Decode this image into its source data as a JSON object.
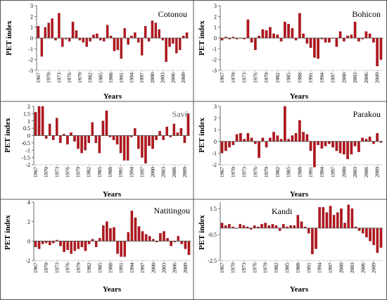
{
  "figure": {
    "bar_color": "#b3161e",
    "bar_edge_color": "#7a0c10",
    "frame_color": "#555555",
    "panel_title_color": "#000000",
    "panel_title_color_muted": "#666666"
  },
  "chart_data": [
    {
      "type": "bar",
      "title": "Cotonou",
      "xlabel": "Years",
      "ylabel": "PET index",
      "ylim": [
        -3,
        3
      ],
      "yticks": [
        "3",
        "2",
        "1",
        "0",
        "-1",
        "-2",
        "-3"
      ],
      "xticks": [
        "1967",
        "1970",
        "1973",
        "1976",
        "1979",
        "1982",
        "1985",
        "1988",
        "1991",
        "1994",
        "1997",
        "2000",
        "2003",
        "2006",
        "2009"
      ],
      "x_start": 1967,
      "values": [
        1.1,
        -1.7,
        1.0,
        1.4,
        1.8,
        -0.2,
        2.3,
        -0.8,
        -0.1,
        -0.3,
        1.5,
        0.7,
        -0.2,
        -0.4,
        -0.8,
        -0.3,
        0.3,
        0.4,
        -0.2,
        -0.3,
        1.2,
        0.2,
        -1.2,
        -1.1,
        -1.9,
        0.9,
        -0.6,
        0.2,
        0.5,
        -0.4,
        -1.6,
        1.1,
        -0.3,
        1.6,
        1.4,
        0.8,
        -0.2,
        -2.2,
        -0.8,
        -0.5,
        -1.4,
        -1.1,
        0.2,
        0.5
      ]
    },
    {
      "type": "bar",
      "title": "Bohicon",
      "xlabel": "Years",
      "ylabel": "PET index",
      "ylim": [
        -3,
        3
      ],
      "yticks": [
        "3",
        "2",
        "1",
        "0",
        "-1",
        "-2",
        "-3"
      ],
      "xticks": [
        "1967",
        "1970",
        "1973",
        "1976",
        "1979",
        "1982",
        "1985",
        "1988",
        "1991",
        "1994",
        "1997",
        "2000",
        "2003",
        "2006",
        "2009"
      ],
      "x_start": 1967,
      "values": [
        -0.2,
        0.1,
        -0.1,
        0.1,
        -0.1,
        0.0,
        -0.1,
        1.7,
        -0.4,
        -1.1,
        0.2,
        0.8,
        0.7,
        1.0,
        0.4,
        0.3,
        -0.3,
        1.5,
        1.3,
        0.9,
        -0.2,
        2.3,
        0.4,
        -0.5,
        -0.9,
        -1.8,
        -1.9,
        -0.1,
        -0.4,
        -0.4,
        0.0,
        -0.8,
        0.6,
        -0.3,
        0.2,
        0.3,
        1.5,
        -0.3,
        -0.1,
        0.6,
        0.4,
        -0.4,
        -2.6,
        -2.0
      ]
    },
    {
      "type": "bar",
      "title": "Savè",
      "xlabel": "Years",
      "ylabel": "PET index",
      "ylim": [
        -2,
        2
      ],
      "yticks": [
        "2",
        "1.5",
        "1",
        "0.5",
        "0",
        "-0.5",
        "-1",
        "-1.5",
        "-2"
      ],
      "xticks": [
        "1967",
        "1970",
        "1973",
        "1976",
        "1979",
        "1982",
        "1985",
        "1988",
        "1991",
        "1994",
        "1997",
        "2000",
        "2003",
        "2006",
        "2009"
      ],
      "x_start": 1967,
      "values": [
        1.6,
        2.0,
        2.0,
        -0.2,
        0.8,
        -0.3,
        1.2,
        -0.5,
        0.1,
        -0.6,
        0.2,
        -0.4,
        -0.9,
        -1.2,
        -1.0,
        -0.5,
        0.9,
        -0.5,
        -1.2,
        1.0,
        1.7,
        -0.1,
        -0.3,
        -0.6,
        -1.2,
        -1.7,
        -1.7,
        -0.1,
        0.5,
        -0.9,
        -1.5,
        -1.9,
        -0.7,
        -0.9,
        -0.3,
        0.3,
        -0.3,
        0.6,
        -0.1,
        0.8,
        0.2,
        0.5,
        -0.5,
        1.5
      ]
    },
    {
      "type": "bar",
      "title": "Parakou",
      "xlabel": "Years",
      "ylabel": "PET index",
      "ylim": [
        -2,
        3
      ],
      "yticks": [
        "3",
        "2",
        "1",
        "0",
        "-1",
        "-2"
      ],
      "xticks": [
        "1967",
        "1970",
        "1973",
        "1976",
        "1979",
        "1982",
        "1985",
        "1988",
        "1991",
        "1994",
        "1997",
        "2000",
        "2003",
        "2006",
        "2009"
      ],
      "x_start": 1967,
      "values": [
        -1.0,
        -0.8,
        -0.5,
        -0.3,
        0.6,
        0.7,
        0.2,
        0.7,
        0.3,
        -0.2,
        -1.4,
        0.3,
        -0.5,
        0.3,
        0.8,
        0.5,
        0.2,
        3.0,
        0.2,
        0.5,
        0.7,
        1.8,
        0.8,
        0.6,
        -0.8,
        -2.2,
        -0.3,
        -0.6,
        -0.4,
        -0.2,
        -0.5,
        -0.8,
        -1.0,
        -1.1,
        -1.5,
        -1.1,
        -0.4,
        -0.9,
        0.3,
        0.2,
        0.4,
        -0.2,
        0.7,
        -0.1
      ]
    },
    {
      "type": "bar",
      "title": "Natitingou",
      "xlabel": "Years",
      "ylabel": "PET index",
      "ylim": [
        -2,
        4
      ],
      "yticks": [
        "4",
        "2",
        "0",
        "-2"
      ],
      "xticks": [
        "1967",
        "1970",
        "1973",
        "1976",
        "1979",
        "1982",
        "1985",
        "1988",
        "1991",
        "1994",
        "1997",
        "2000",
        "2003",
        "2006",
        "2009"
      ],
      "x_start": 1967,
      "values": [
        -0.6,
        -0.8,
        -0.3,
        -0.2,
        -0.4,
        -0.2,
        0.1,
        -0.5,
        -1.1,
        -0.9,
        -1.3,
        -1.0,
        -0.8,
        -0.6,
        -1.0,
        -0.3,
        0.2,
        -0.6,
        0.3,
        1.6,
        2.0,
        1.3,
        1.4,
        -1.3,
        -1.6,
        -1.6,
        0.9,
        3.1,
        2.4,
        1.5,
        1.0,
        0.7,
        0.5,
        0.2,
        -0.1,
        0.8,
        1.0,
        0.3,
        -0.5,
        -0.1,
        0.5,
        -0.3,
        -0.8,
        -1.4
      ]
    },
    {
      "type": "bar",
      "title": "Kandi",
      "xlabel": "Years",
      "ylabel": "PET index",
      "ylim": [
        -2.5,
        2
      ],
      "yticks": [
        "1.5",
        "-0.5",
        "-2.5"
      ],
      "xticks": [
        "1967",
        "1970",
        "1973",
        "1976",
        "1979",
        "1982",
        "1985",
        "1988",
        "1991",
        "1994",
        "1997",
        "2000",
        "2003",
        "2006",
        "2009"
      ],
      "x_start": 1967,
      "values": [
        0.4,
        0.2,
        0.3,
        0.1,
        0.0,
        0.3,
        0.2,
        0.1,
        -0.1,
        0.2,
        0.1,
        0.3,
        0.4,
        0.2,
        0.3,
        0.2,
        -0.2,
        0.3,
        0.1,
        0.2,
        0.2,
        1.0,
        0.5,
        0.1,
        -0.4,
        -2.0,
        -1.6,
        1.6,
        1.6,
        1.2,
        1.7,
        1.0,
        1.2,
        1.5,
        0.4,
        1.8,
        1.5,
        0.1,
        -0.2,
        -0.4,
        -0.7,
        -1.0,
        -1.3,
        -1.9,
        -1.5
      ]
    }
  ]
}
